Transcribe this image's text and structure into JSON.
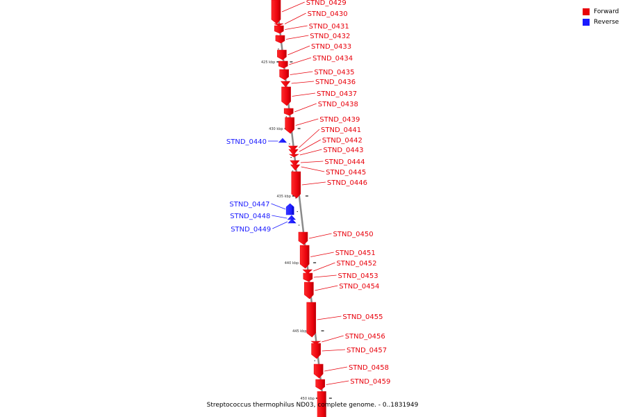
{
  "legend": [
    {
      "label": "Forward",
      "color": "#e8000b"
    },
    {
      "label": "Reverse",
      "color": "#1a1aff"
    }
  ],
  "caption": "Streptococcus thermophilus ND03, complete genome. - 0..1831949",
  "ticks": [
    {
      "kbp": 425,
      "label": "425 kbp"
    },
    {
      "kbp": 430,
      "label": "430 kbp"
    },
    {
      "kbp": 435,
      "label": "435 kbp"
    },
    {
      "kbp": 440,
      "label": "440 kbp"
    },
    {
      "kbp": 445,
      "label": "445 kbp"
    },
    {
      "kbp": 450,
      "label": "450 kbp"
    }
  ],
  "genes": [
    {
      "name": "STND_0429",
      "strand": "forward"
    },
    {
      "name": "STND_0430",
      "strand": "forward"
    },
    {
      "name": "STND_0431",
      "strand": "forward"
    },
    {
      "name": "STND_0432",
      "strand": "forward"
    },
    {
      "name": "STND_0433",
      "strand": "forward"
    },
    {
      "name": "STND_0434",
      "strand": "forward"
    },
    {
      "name": "STND_0435",
      "strand": "forward"
    },
    {
      "name": "STND_0436",
      "strand": "forward"
    },
    {
      "name": "STND_0437",
      "strand": "forward"
    },
    {
      "name": "STND_0438",
      "strand": "forward"
    },
    {
      "name": "STND_0439",
      "strand": "forward"
    },
    {
      "name": "STND_0440",
      "strand": "reverse"
    },
    {
      "name": "STND_0441",
      "strand": "forward"
    },
    {
      "name": "STND_0442",
      "strand": "forward"
    },
    {
      "name": "STND_0443",
      "strand": "forward"
    },
    {
      "name": "STND_0444",
      "strand": "forward"
    },
    {
      "name": "STND_0445",
      "strand": "forward"
    },
    {
      "name": "STND_0446",
      "strand": "forward"
    },
    {
      "name": "STND_0447",
      "strand": "reverse"
    },
    {
      "name": "STND_0448",
      "strand": "reverse"
    },
    {
      "name": "STND_0449",
      "strand": "reverse"
    },
    {
      "name": "STND_0450",
      "strand": "forward"
    },
    {
      "name": "STND_0451",
      "strand": "forward"
    },
    {
      "name": "STND_0452",
      "strand": "forward"
    },
    {
      "name": "STND_0453",
      "strand": "forward"
    },
    {
      "name": "STND_0454",
      "strand": "forward"
    },
    {
      "name": "STND_0455",
      "strand": "forward"
    },
    {
      "name": "STND_0456",
      "strand": "forward"
    },
    {
      "name": "STND_0457",
      "strand": "forward"
    },
    {
      "name": "STND_0458",
      "strand": "forward"
    },
    {
      "name": "STND_0459",
      "strand": "forward"
    }
  ]
}
